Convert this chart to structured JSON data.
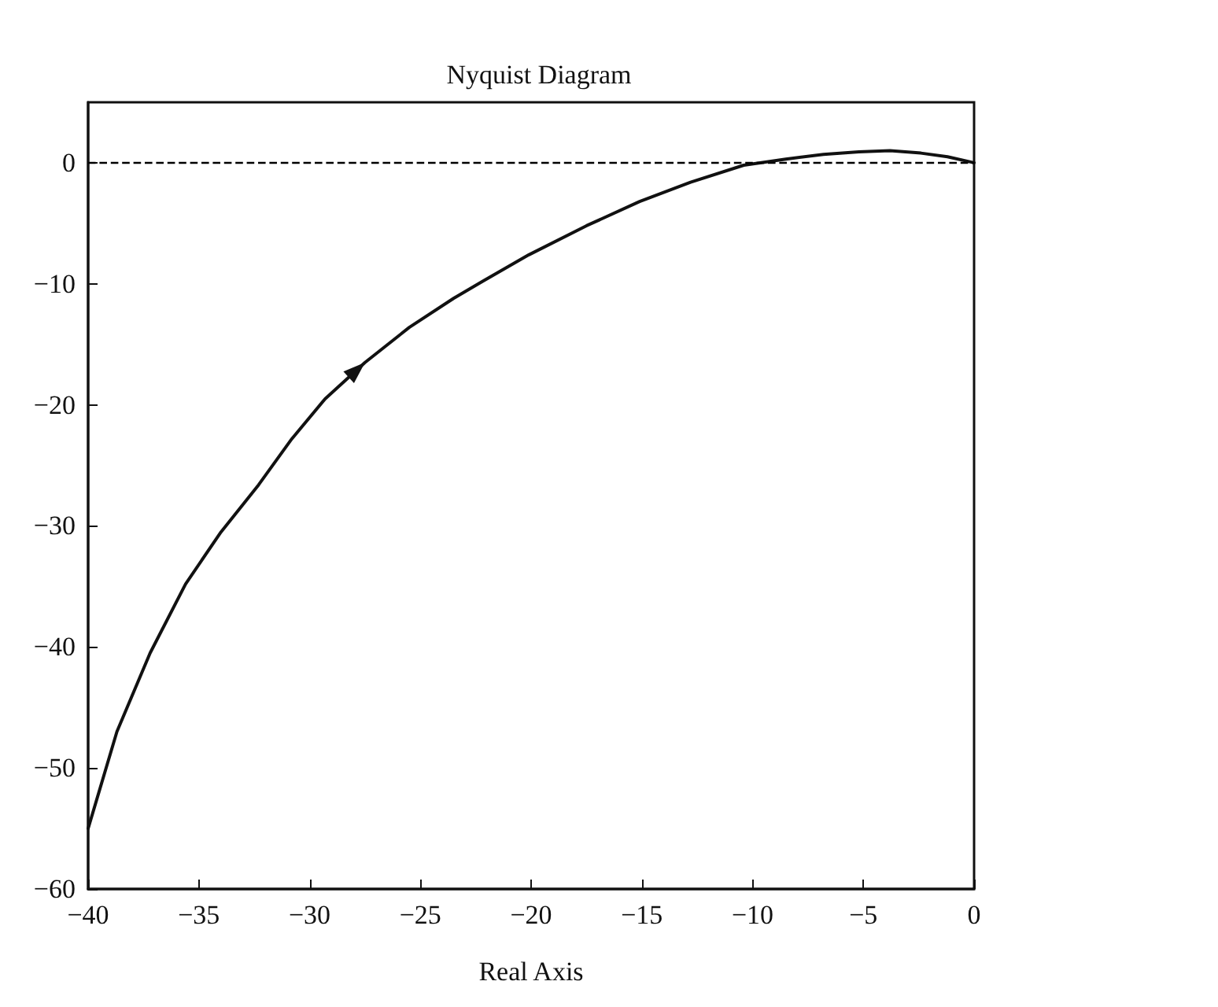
{
  "chart_data": {
    "type": "line",
    "title": "Nyquist Diagram",
    "xlabel": "Real Axis",
    "xlim": [
      -40,
      0
    ],
    "xticks": [
      -40,
      -35,
      -30,
      -25,
      -20,
      -15,
      -10,
      -5,
      0
    ],
    "ylim": [
      -60,
      5
    ],
    "yticks": [
      -60,
      -50,
      -40,
      -30,
      -20,
      -10,
      0
    ],
    "grid": false,
    "marker": "none",
    "line_style": "solid",
    "ref_lines": [
      {
        "axis": "y",
        "value": 0,
        "line_style": "dashed",
        "color": "#000000"
      }
    ],
    "series": [
      {
        "color": "#111111",
        "x": [
          -40,
          -38.7,
          -37.2,
          -35.6,
          -34,
          -32.3,
          -30.8,
          -29.3,
          -27.5,
          -25.5,
          -23.5,
          -22.2,
          -20.1,
          -17.5,
          -15.1,
          -12.8,
          -10.4,
          -8.5,
          -6.8,
          -5.2,
          -3.8,
          -2.4,
          -1.2,
          0
        ],
        "values": [
          -55,
          -47,
          -40.5,
          -34.8,
          -30.5,
          -26.6,
          -22.8,
          -19.5,
          -16.5,
          -13.6,
          -11.2,
          -9.8,
          -7.6,
          -5.2,
          -3.2,
          -1.6,
          -0.2,
          0.3,
          0.7,
          0.9,
          1,
          0.8,
          0.5,
          0
        ]
      }
    ]
  }
}
